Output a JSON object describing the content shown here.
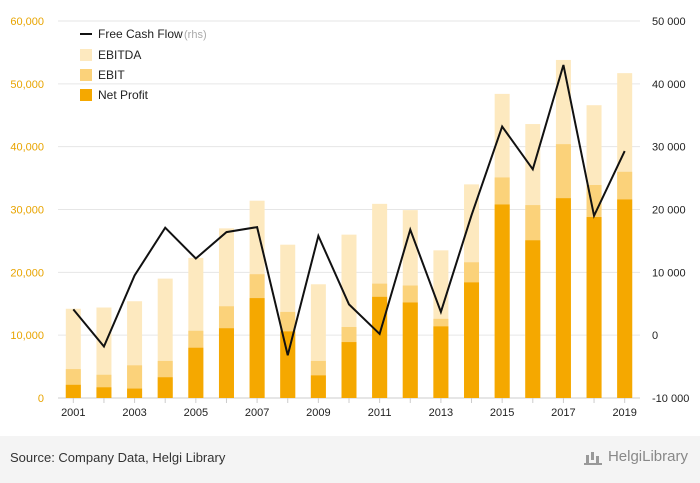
{
  "chart_data": {
    "type": "bar",
    "categories": [
      "2001",
      "2002",
      "2003",
      "2004",
      "2005",
      "2006",
      "2007",
      "2008",
      "2009",
      "2010",
      "2011",
      "2012",
      "2013",
      "2014",
      "2015",
      "2016",
      "2017",
      "2018",
      "2019"
    ],
    "x_tick_labels": [
      "2001",
      "2003",
      "2005",
      "2007",
      "2009",
      "2011",
      "2013",
      "2015",
      "2017",
      "2019"
    ],
    "series": [
      {
        "name": "EBITDA",
        "kind": "bar",
        "color": "#fde9bf",
        "values": [
          14200,
          14400,
          15400,
          19000,
          22300,
          27000,
          31400,
          24400,
          18100,
          26000,
          30900,
          29900,
          23500,
          34000,
          48400,
          43600,
          53800,
          46600,
          51700
        ]
      },
      {
        "name": "EBIT",
        "kind": "bar",
        "color": "#fbd27a",
        "values": [
          4600,
          3700,
          5200,
          5900,
          10700,
          14600,
          19700,
          13700,
          5900,
          11300,
          18200,
          17900,
          12600,
          21600,
          35100,
          30700,
          40400,
          33900,
          36000
        ]
      },
      {
        "name": "Net Profit",
        "kind": "bar",
        "color": "#f5a800",
        "values": [
          2100,
          1700,
          1500,
          3300,
          8000,
          11100,
          15900,
          10600,
          3600,
          8900,
          16100,
          15200,
          11400,
          18400,
          30800,
          25100,
          31800,
          28800,
          31600
        ]
      },
      {
        "name": "Free Cash Flow",
        "suffix": "(rhs)",
        "kind": "line",
        "axis": "right",
        "color": "#111111",
        "values": [
          4100,
          -1800,
          9500,
          17100,
          12200,
          16400,
          17200,
          -3200,
          15800,
          4900,
          200,
          16800,
          3700,
          19100,
          33200,
          26400,
          43000,
          19000,
          29300
        ]
      }
    ],
    "left_axis": {
      "ylim": [
        0,
        60000
      ],
      "ticks": [
        "0",
        "10,000",
        "20,000",
        "30,000",
        "40,000",
        "50,000",
        "60,000"
      ],
      "color": "#e8a400"
    },
    "right_axis": {
      "ylim": [
        -10000,
        50000
      ],
      "ticks": [
        "-10 000",
        "0",
        "10 000",
        "20 000",
        "30 000",
        "40 000",
        "50 000"
      ]
    },
    "grid": true,
    "legend_position": "top-left"
  },
  "footer": {
    "source": "Source: Company Data, Helgi Library",
    "brand": "HelgiLibrary"
  }
}
